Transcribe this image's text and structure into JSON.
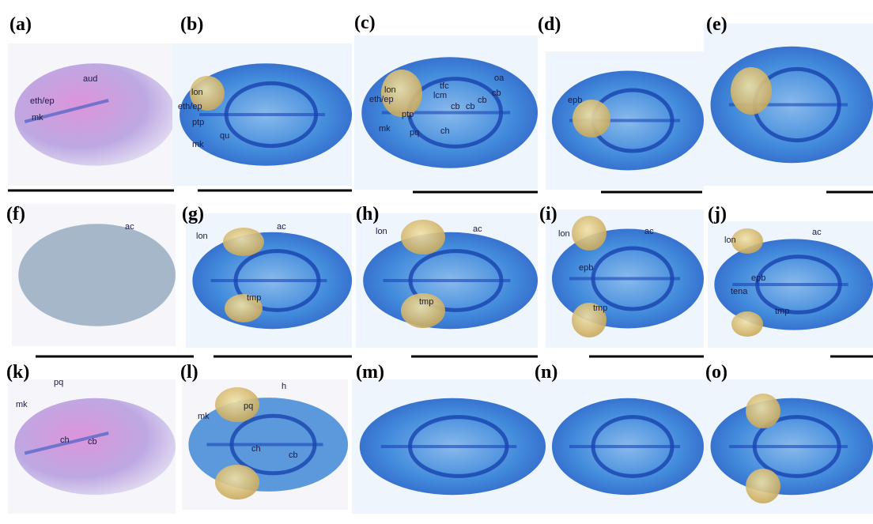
{
  "panels": [
    {
      "label": "(a)",
      "annotations": [
        "aud",
        "eth/ep",
        "mk"
      ]
    },
    {
      "label": "(b)",
      "annotations": [
        "lon",
        "eth/ep",
        "ptp",
        "qu",
        "mk"
      ]
    },
    {
      "label": "(c)",
      "annotations": [
        "lon",
        "eth/ep",
        "tfc",
        "lcm",
        "oa",
        "cb",
        "cb",
        "cb",
        "cb",
        "ptp",
        "mk",
        "pq",
        "ch"
      ]
    },
    {
      "label": "(d)",
      "annotations": [
        "epb"
      ]
    },
    {
      "label": "(e)",
      "annotations": []
    },
    {
      "label": "(f)",
      "annotations": [
        "ac"
      ]
    },
    {
      "label": "(g)",
      "annotations": [
        "lon",
        "ac",
        "tmp"
      ]
    },
    {
      "label": "(h)",
      "annotations": [
        "lon",
        "ac",
        "tmp"
      ]
    },
    {
      "label": "(i)",
      "annotations": [
        "lon",
        "ac",
        "epb",
        "tmp"
      ]
    },
    {
      "label": "(j)",
      "annotations": [
        "lon",
        "ac",
        "epb",
        "tena",
        "tmp"
      ]
    },
    {
      "label": "(k)",
      "annotations": [
        "pq",
        "mk",
        "ch",
        "cb"
      ]
    },
    {
      "label": "(l)",
      "annotations": [
        "mk",
        "pq",
        "h",
        "ch",
        "cb"
      ]
    },
    {
      "label": "(m)",
      "annotations": []
    },
    {
      "label": "(n)",
      "annotations": []
    },
    {
      "label": "(o)",
      "annotations": []
    }
  ]
}
